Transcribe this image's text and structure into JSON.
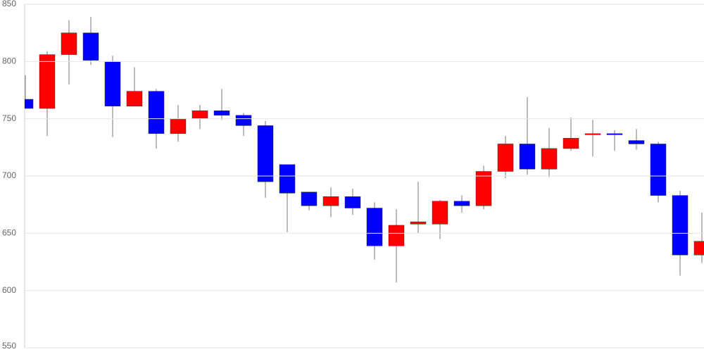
{
  "chart_data": {
    "type": "candlestick",
    "categories": [
      null,
      null,
      null,
      null,
      null,
      null,
      null,
      null,
      null,
      null,
      null,
      null,
      null,
      null,
      null,
      null,
      null,
      null,
      null,
      null,
      null,
      null,
      null,
      null,
      null,
      null,
      null,
      null,
      null,
      null,
      null,
      null
    ],
    "open": [
      767,
      759,
      806,
      825,
      800,
      761,
      774,
      737,
      750,
      757,
      753,
      744,
      710,
      686,
      674,
      682,
      672,
      639,
      658,
      658,
      678,
      674,
      704,
      728,
      706,
      724,
      736,
      737,
      731,
      728,
      683,
      631
    ],
    "high": [
      788,
      809,
      836,
      839,
      805,
      795,
      776,
      762,
      762,
      776,
      755,
      748,
      710,
      686,
      690,
      689,
      677,
      671,
      695,
      679,
      683,
      709,
      735,
      769,
      742,
      751,
      749,
      740,
      741,
      730,
      687,
      668
    ],
    "low": [
      759,
      735,
      780,
      797,
      734,
      761,
      724,
      730,
      741,
      749,
      735,
      681,
      651,
      670,
      664,
      666,
      627,
      607,
      650,
      645,
      668,
      671,
      698,
      701,
      699,
      722,
      717,
      722,
      723,
      677,
      613,
      624
    ],
    "close": [
      759,
      806,
      825,
      801,
      761,
      774,
      737,
      750,
      757,
      753,
      744,
      695,
      685,
      674,
      682,
      672,
      639,
      657,
      660,
      678,
      674,
      704,
      728,
      706,
      724,
      733,
      737,
      736,
      728,
      683,
      631,
      643
    ],
    "up_color": "#ff0000",
    "down_color": "#0000ff",
    "ylim": [
      550,
      850
    ],
    "yticks": [
      550,
      600,
      650,
      700,
      750,
      800,
      850
    ],
    "grid": true
  }
}
